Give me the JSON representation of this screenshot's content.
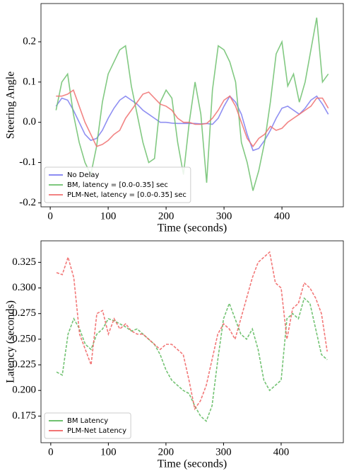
{
  "chart_data": [
    {
      "type": "line",
      "ylabel": "Steering Angle",
      "xlabel": "Time (seconds)",
      "legend": "lower left",
      "line_style": "solid",
      "xlim": [
        -16,
        506
      ],
      "xticks": [
        0,
        100,
        200,
        300,
        400
      ],
      "ylim": [
        -0.21,
        0.295
      ],
      "yticks": [
        -0.2,
        -0.1,
        {
          "value": 0,
          "label": "0.0"
        },
        0.1,
        0.2
      ],
      "x": [
        10,
        20,
        30,
        40,
        50,
        60,
        70,
        80,
        90,
        100,
        110,
        120,
        130,
        140,
        150,
        160,
        170,
        180,
        190,
        200,
        210,
        220,
        230,
        240,
        250,
        260,
        270,
        280,
        290,
        300,
        310,
        320,
        330,
        340,
        350,
        360,
        370,
        380,
        390,
        400,
        410,
        420,
        430,
        440,
        450,
        460,
        470,
        480
      ],
      "series": [
        {
          "name": "No Delay",
          "color": "#7b7bf0",
          "values": [
            0.04,
            0.06,
            0.055,
            0.03,
            0.0,
            -0.03,
            -0.045,
            -0.04,
            -0.02,
            0.01,
            0.035,
            0.055,
            0.065,
            0.055,
            0.045,
            0.03,
            0.02,
            0.01,
            0.0,
            0.0,
            -0.002,
            -0.003,
            -0.003,
            -0.003,
            -0.003,
            -0.004,
            -0.003,
            -0.005,
            0.01,
            0.04,
            0.065,
            0.05,
            0.02,
            -0.03,
            -0.07,
            -0.065,
            -0.045,
            -0.02,
            0.01,
            0.035,
            0.04,
            0.03,
            0.02,
            0.035,
            0.055,
            0.065,
            0.045,
            0.02
          ]
        },
        {
          "name": "BM, latency = [0.0-0.35] sec",
          "color": "#6cbf6c",
          "values": [
            0.03,
            0.1,
            0.12,
            0.02,
            -0.05,
            -0.1,
            -0.13,
            -0.06,
            0.05,
            0.12,
            0.15,
            0.18,
            0.19,
            0.09,
            0.02,
            -0.05,
            -0.1,
            -0.09,
            0.05,
            0.08,
            0.06,
            -0.05,
            -0.13,
            0.0,
            0.1,
            0.02,
            -0.15,
            0.08,
            0.19,
            0.18,
            0.15,
            0.1,
            -0.05,
            -0.1,
            -0.17,
            -0.12,
            -0.05,
            0.05,
            0.17,
            0.2,
            0.09,
            0.12,
            0.05,
            0.1,
            0.18,
            0.26,
            0.1,
            0.12
          ]
        },
        {
          "name": "PLM-Net, latency = [0.0-0.35] sec",
          "color": "#f07070",
          "values": [
            0.065,
            0.065,
            0.07,
            0.08,
            0.04,
            0.0,
            -0.03,
            -0.06,
            -0.055,
            -0.045,
            -0.03,
            -0.02,
            0.01,
            0.03,
            0.05,
            0.07,
            0.075,
            0.06,
            0.045,
            0.04,
            0.03,
            0.01,
            0.0,
            0.0,
            -0.005,
            -0.005,
            -0.003,
            0.01,
            0.03,
            0.055,
            0.065,
            0.04,
            0.0,
            -0.04,
            -0.06,
            -0.04,
            -0.03,
            -0.01,
            -0.02,
            -0.015,
            0.0,
            0.01,
            0.02,
            0.03,
            0.04,
            0.06,
            0.06,
            0.035
          ]
        }
      ]
    },
    {
      "type": "line",
      "ylabel": "Latency (seconds)",
      "xlabel": "Time (seconds)",
      "legend": "lower left",
      "line_style": "dashed",
      "xlim": [
        -17,
        508
      ],
      "xticks": [
        0,
        100,
        200,
        300,
        400
      ],
      "ylim": [
        0.149,
        0.346
      ],
      "yticks": [
        0.175,
        {
          "value": 0.2,
          "label": "0.200"
        },
        0.225,
        {
          "value": 0.25,
          "label": "0.250"
        },
        0.275,
        {
          "value": 0.3,
          "label": "0.300"
        },
        0.325
      ],
      "x": [
        10,
        20,
        30,
        40,
        50,
        60,
        70,
        80,
        90,
        100,
        110,
        120,
        130,
        140,
        150,
        160,
        170,
        180,
        190,
        200,
        210,
        220,
        230,
        240,
        250,
        260,
        270,
        280,
        290,
        300,
        310,
        320,
        330,
        340,
        350,
        360,
        370,
        380,
        390,
        400,
        410,
        420,
        430,
        440,
        450,
        460,
        470,
        480
      ],
      "series": [
        {
          "name": "BM Latency",
          "color": "#5cb85c",
          "values": [
            0.218,
            0.215,
            0.255,
            0.27,
            0.26,
            0.245,
            0.24,
            0.255,
            0.26,
            0.27,
            0.268,
            0.265,
            0.262,
            0.258,
            0.26,
            0.255,
            0.25,
            0.245,
            0.235,
            0.22,
            0.21,
            0.205,
            0.2,
            0.197,
            0.185,
            0.175,
            0.17,
            0.185,
            0.23,
            0.27,
            0.285,
            0.27,
            0.255,
            0.25,
            0.26,
            0.24,
            0.21,
            0.2,
            0.205,
            0.21,
            0.27,
            0.275,
            0.27,
            0.29,
            0.285,
            0.26,
            0.235,
            0.23
          ]
        },
        {
          "name": "PLM-Net Latency",
          "color": "#f06060",
          "values": [
            0.315,
            0.313,
            0.33,
            0.31,
            0.255,
            0.24,
            0.225,
            0.275,
            0.278,
            0.255,
            0.27,
            0.26,
            0.265,
            0.258,
            0.255,
            0.255,
            0.25,
            0.245,
            0.24,
            0.245,
            0.245,
            0.24,
            0.235,
            0.21,
            0.182,
            0.19,
            0.205,
            0.23,
            0.255,
            0.265,
            0.26,
            0.25,
            0.27,
            0.29,
            0.31,
            0.325,
            0.33,
            0.335,
            0.305,
            0.3,
            0.25,
            0.28,
            0.285,
            0.305,
            0.3,
            0.29,
            0.275,
            0.238
          ]
        }
      ]
    }
  ]
}
